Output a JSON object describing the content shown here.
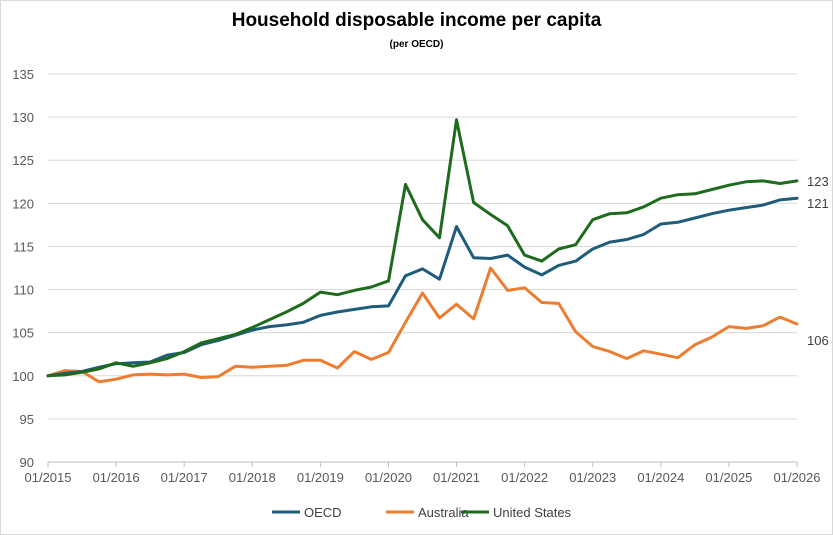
{
  "chart_data": {
    "type": "line",
    "title": "Household disposable income per capita",
    "subtitle": "(per OECD)",
    "xlabel": "",
    "ylabel": "",
    "ylim": [
      90,
      135
    ],
    "yticks": [
      90,
      95,
      100,
      105,
      110,
      115,
      120,
      125,
      130,
      135
    ],
    "xticks": [
      "01/2015",
      "01/2016",
      "01/2017",
      "01/2018",
      "01/2019",
      "01/2020",
      "01/2021",
      "01/2022",
      "01/2023",
      "01/2024",
      "01/2025",
      "01/2026"
    ],
    "x": [
      "2015-Q1",
      "2015-Q2",
      "2015-Q3",
      "2015-Q4",
      "2016-Q1",
      "2016-Q2",
      "2016-Q3",
      "2016-Q4",
      "2017-Q1",
      "2017-Q2",
      "2017-Q3",
      "2017-Q4",
      "2018-Q1",
      "2018-Q2",
      "2018-Q3",
      "2018-Q4",
      "2019-Q1",
      "2019-Q2",
      "2019-Q3",
      "2019-Q4",
      "2020-Q1",
      "2020-Q2",
      "2020-Q3",
      "2020-Q4",
      "2021-Q1",
      "2021-Q2",
      "2021-Q3",
      "2021-Q4",
      "2022-Q1",
      "2022-Q2",
      "2022-Q3",
      "2022-Q4",
      "2023-Q1",
      "2023-Q2",
      "2023-Q3",
      "2023-Q4",
      "2024-Q1",
      "2024-Q2",
      "2024-Q3",
      "2024-Q4",
      "2025-Q1",
      "2025-Q2",
      "2025-Q3",
      "2025-Q4",
      "2026-Q1"
    ],
    "grid": true,
    "legend_position": "bottom",
    "series": [
      {
        "name": "OECD",
        "color": "#1f5c7a",
        "end_label": "121",
        "values": [
          100,
          100.3,
          100.5,
          101.0,
          101.4,
          101.5,
          101.6,
          102.4,
          102.7,
          103.6,
          104.1,
          104.7,
          105.3,
          105.7,
          105.9,
          106.2,
          107.0,
          107.4,
          107.7,
          108.0,
          108.1,
          111.6,
          112.4,
          111.2,
          117.3,
          113.7,
          113.6,
          114.0,
          112.6,
          111.7,
          112.8,
          113.3,
          114.7,
          115.5,
          115.8,
          116.4,
          117.6,
          117.8,
          118.3,
          118.8,
          119.2,
          119.5,
          119.8,
          120.4,
          120.6
        ]
      },
      {
        "name": "Australia",
        "color": "#ed7d31",
        "end_label": "106",
        "values": [
          100,
          100.6,
          100.5,
          99.3,
          99.6,
          100.1,
          100.2,
          100.1,
          100.2,
          99.8,
          99.9,
          101.1,
          101.0,
          101.1,
          101.2,
          101.8,
          101.8,
          100.9,
          102.8,
          101.9,
          102.7,
          106.2,
          109.6,
          106.7,
          108.3,
          106.6,
          112.5,
          109.9,
          110.2,
          108.5,
          108.4,
          105.1,
          103.4,
          102.8,
          102.0,
          102.9,
          102.5,
          102.1,
          103.6,
          104.5,
          105.7,
          105.5,
          105.8,
          106.8,
          106.0
        ]
      },
      {
        "name": "United States",
        "color": "#1e6b1e",
        "end_label": "123",
        "values": [
          100,
          100.1,
          100.4,
          100.8,
          101.5,
          101.1,
          101.5,
          102.0,
          102.8,
          103.8,
          104.3,
          104.8,
          105.6,
          106.5,
          107.4,
          108.4,
          109.7,
          109.4,
          109.9,
          110.3,
          111.0,
          122.2,
          118.1,
          116.0,
          129.7,
          120.1,
          118.7,
          117.4,
          114.0,
          113.3,
          114.7,
          115.2,
          118.1,
          118.8,
          118.9,
          119.6,
          120.6,
          121.0,
          121.1,
          121.6,
          122.1,
          122.5,
          122.6,
          122.3,
          122.6
        ]
      }
    ]
  }
}
